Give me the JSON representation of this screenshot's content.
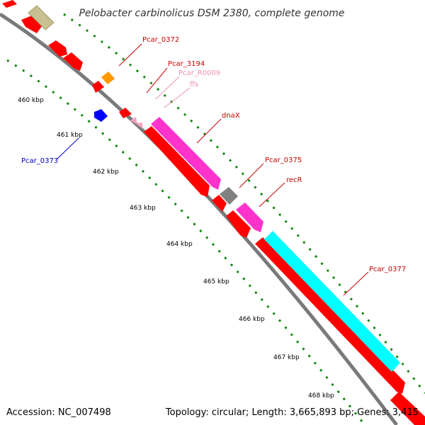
{
  "title": "Pelobacter carbinolicus DSM 2380, complete genome",
  "footer": {
    "accession": "Accession: NC_007498",
    "summary": "Topology: circular; Length: 3,665,893 bp; Genes: 3,415"
  },
  "scale_labels": [
    "460 kbp",
    "461 kbp",
    "462 kbp",
    "463 kbp",
    "464 kbp",
    "465 kbp",
    "466 kbp",
    "467 kbp",
    "468 kbp"
  ],
  "gene_labels": [
    {
      "text": "Pcar_0372",
      "color": "#cc0000"
    },
    {
      "text": "Pcar_3194",
      "color": "#cc0000"
    },
    {
      "text": "Pcar_R0009",
      "color": "#f090b0"
    },
    {
      "text": "ffs",
      "color": "#f090b0"
    },
    {
      "text": "dnaX",
      "color": "#cc0000"
    },
    {
      "text": "Pcar_0375",
      "color": "#cc0000"
    },
    {
      "text": "recR",
      "color": "#cc0000"
    },
    {
      "text": "Pcar_0377",
      "color": "#cc0000"
    },
    {
      "text": "Pcar_0373",
      "color": "#0000cc"
    }
  ],
  "colors": {
    "backbone": "#808080",
    "cds": "#ff0000",
    "rna": "#f4a0c0",
    "magenta": "#ff33cc",
    "cyan": "#00ffff",
    "orange": "#ff9900",
    "blue": "#0000ff",
    "grey": "#808080",
    "olive": "#c8c090",
    "tick": "#118811"
  }
}
